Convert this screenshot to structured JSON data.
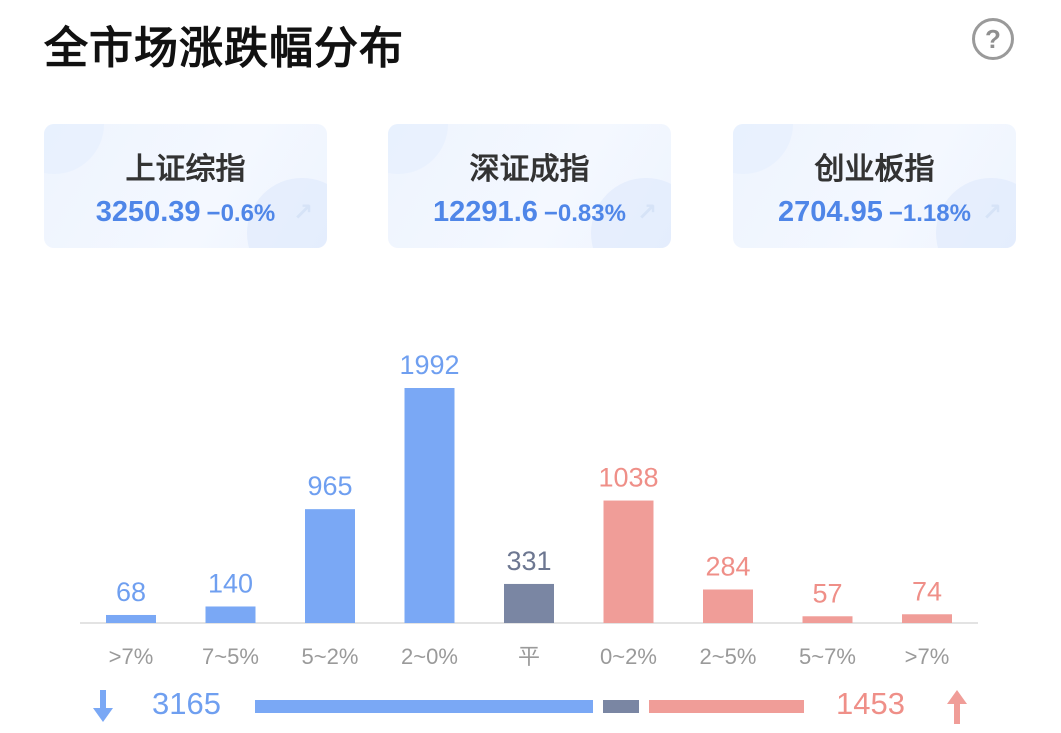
{
  "header": {
    "title": "全市场涨跌幅分布",
    "help_icon": "question-circle-icon",
    "help_glyph": "?"
  },
  "indices": [
    {
      "name": "上证综指",
      "value": "3250.39",
      "change": "−0.6%"
    },
    {
      "name": "深证成指",
      "value": "12291.6",
      "change": "−0.83%"
    },
    {
      "name": "创业板指",
      "value": "2704.95",
      "change": "−1.18%"
    }
  ],
  "colors": {
    "down": "#7aa8f5",
    "flat": "#7a86a3",
    "up": "#f09d98",
    "down_text": "#6f9ff0",
    "up_text": "#ef8f88",
    "flat_text": "#6d7791",
    "axis_text": "#9a9a9a"
  },
  "chart_data": {
    "type": "bar",
    "categories": [
      ">7%",
      "7~5%",
      "5~2%",
      "2~0%",
      "平",
      "0~2%",
      "2~5%",
      "5~7%",
      ">7%"
    ],
    "values": [
      68,
      140,
      965,
      1992,
      331,
      1038,
      284,
      57,
      74
    ],
    "groups": [
      "down",
      "down",
      "down",
      "down",
      "flat",
      "up",
      "up",
      "up",
      "up"
    ],
    "ylim": [
      0,
      1992
    ]
  },
  "summary": {
    "down_count": "3165",
    "up_count": "1453",
    "flat_count": 331
  }
}
